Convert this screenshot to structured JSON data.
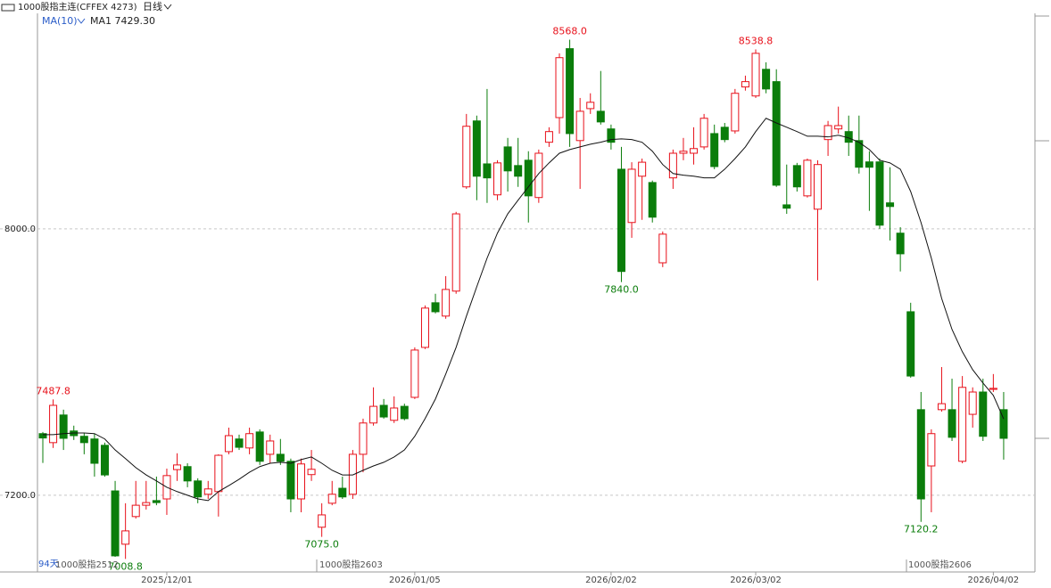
{
  "chart_data": {
    "type": "candlestick",
    "title": "1000股指主连(CFFEX 4273)",
    "period": "日线",
    "ma_name": "MA(10)",
    "ma_label": "MA1 7429.30",
    "day_count_label": "94天",
    "contract_labels": [
      "1000股指2512",
      "1000股指2603",
      "1000股指2606"
    ],
    "categories": [
      null,
      null,
      null,
      null,
      null,
      null,
      null,
      null,
      null,
      null,
      null,
      null,
      "2025/12/01",
      null,
      null,
      null,
      null,
      null,
      null,
      null,
      null,
      null,
      null,
      null,
      null,
      null,
      null,
      null,
      null,
      null,
      null,
      null,
      null,
      null,
      null,
      null,
      "2026/01/05",
      null,
      null,
      null,
      null,
      null,
      null,
      null,
      null,
      null,
      null,
      null,
      null,
      null,
      null,
      null,
      null,
      null,
      null,
      "2026/02/02",
      null,
      null,
      null,
      null,
      null,
      null,
      null,
      null,
      null,
      null,
      null,
      null,
      null,
      "2026/03/02",
      null,
      null,
      null,
      null,
      null,
      null,
      null,
      null,
      null,
      null,
      null,
      null,
      null,
      null,
      null,
      null,
      null,
      null,
      null,
      null,
      null,
      null,
      "2026/04/02",
      null
    ],
    "open": [
      7385,
      7358,
      7441,
      7393,
      7377,
      7369,
      7350,
      7213,
      7053,
      7136,
      7170,
      7184,
      7189,
      7277,
      7286,
      7243,
      7203,
      7211,
      7331,
      7369,
      7342,
      7390,
      7323,
      7323,
      7302,
      7189,
      7262,
      7104,
      7176,
      7221,
      7203,
      7323,
      7417,
      7470,
      7425,
      7467,
      7494,
      7644,
      7778,
      7738,
      7813,
      8126,
      8324,
      8195,
      8102,
      8246,
      8190,
      8206,
      8094,
      8260,
      8334,
      8541,
      8265,
      8361,
      8353,
      8300,
      8179,
      8019,
      8158,
      8139,
      7898,
      8153,
      8227,
      8227,
      8246,
      8286,
      8305,
      8294,
      8426,
      8399,
      8479,
      8442,
      8072,
      8190,
      8099,
      8059,
      8268,
      8300,
      8292,
      8265,
      8201,
      8201,
      8078,
      7987,
      7751,
      7457,
      7288,
      7457,
      7457,
      7302,
      7443,
      7510,
      7518,
      7457
    ],
    "high": [
      7390,
      7487.8,
      7457,
      7409,
      7387,
      7385,
      7358,
      7243,
      7176,
      7243,
      7243,
      7256,
      7280,
      7326,
      7296,
      7251,
      7243,
      7323,
      7403,
      7382,
      7403,
      7398,
      7382,
      7369,
      7310,
      7310,
      7336,
      7176,
      7243,
      7256,
      7336,
      7430,
      7524,
      7489,
      7497,
      7475,
      7644,
      7770,
      7805,
      7858,
      8051,
      8345,
      8340,
      8420,
      8206,
      8273,
      8273,
      8233,
      8238,
      8305,
      8527,
      8568,
      8393,
      8407,
      8474,
      8313,
      8246,
      8200,
      8211,
      8145,
      7992,
      8238,
      8273,
      8305,
      8345,
      8313,
      8318,
      8420,
      8460,
      8538.8,
      8500,
      8479,
      8193,
      8198,
      8211,
      8206,
      8324,
      8367,
      8340,
      8340,
      8233,
      8211,
      8185,
      8005,
      7778,
      7510,
      7398,
      7585,
      7550,
      7558,
      7524,
      7550,
      7564,
      7510
    ],
    "low": [
      7297,
      7342,
      7336,
      7366,
      7323,
      7256,
      7256,
      7015,
      7008.8,
      7130,
      7157,
      7170,
      7141,
      7243,
      7224,
      7176,
      7189,
      7136,
      7323,
      7336,
      7323,
      7291,
      7296,
      7291,
      7149,
      7149,
      7243,
      7075,
      7170,
      7189,
      7189,
      7269,
      7409,
      7430,
      7417,
      7425,
      7489,
      7639,
      7746,
      7730,
      7805,
      8120,
      8086,
      8078,
      8086,
      8112,
      8126,
      8019,
      8078,
      8246,
      8286,
      8246,
      8120,
      8345,
      8313,
      8238,
      7840,
      7973,
      8027,
      8019,
      7885,
      8120,
      8206,
      8193,
      8238,
      8179,
      8260,
      8286,
      8415,
      8393,
      8407,
      8126,
      8045,
      8112,
      8094,
      7845,
      8219,
      8286,
      8219,
      8166,
      8054,
      8000,
      7965,
      7872,
      7553,
      7120.2,
      7149,
      7451,
      7363,
      7296,
      7403,
      7363,
      7510,
      7307
    ],
    "close": [
      7372,
      7470,
      7371,
      7379,
      7358,
      7296,
      7261,
      7018,
      7093,
      7170,
      7178,
      7178,
      7259,
      7291,
      7243,
      7195,
      7219,
      7320,
      7379,
      7344,
      7385,
      7302,
      7363,
      7302,
      7189,
      7294,
      7278,
      7141,
      7203,
      7195,
      7323,
      7417,
      7467,
      7435,
      7462,
      7430,
      7636,
      7762,
      7751,
      7818,
      8045,
      8308,
      8158,
      8153,
      8198,
      8174,
      8158,
      8099,
      8227,
      8292,
      8514,
      8286,
      8353,
      8380,
      8321,
      8260,
      7872,
      8179,
      8200,
      8035,
      7984,
      8227,
      8233,
      8241,
      8332,
      8187,
      8268,
      8407,
      8442,
      8527,
      8420,
      8131,
      8062,
      8126,
      8206,
      8193,
      8310,
      8310,
      8260,
      8185,
      8185,
      8011,
      8067,
      7925,
      7558,
      7189,
      7385,
      7475,
      7374,
      7524,
      7510,
      7377,
      7521,
      7371
    ],
    "ma": [
      7382,
      7382,
      7385,
      7387,
      7387,
      7385,
      7369,
      7336,
      7310,
      7283,
      7261,
      7243,
      7224,
      7211,
      7200,
      7189,
      7184,
      7211,
      7229,
      7248,
      7269,
      7286,
      7296,
      7299,
      7296,
      7307,
      7315,
      7296,
      7275,
      7261,
      7261,
      7275,
      7288,
      7299,
      7315,
      7336,
      7377,
      7430,
      7489,
      7564,
      7644,
      7738,
      7826,
      7912,
      7987,
      8045,
      8086,
      8126,
      8166,
      8198,
      8227,
      8238,
      8246,
      8254,
      8260,
      8268,
      8270,
      8268,
      8260,
      8233,
      8193,
      8166,
      8161,
      8158,
      8153,
      8153,
      8179,
      8211,
      8246,
      8292,
      8332,
      8318,
      8305,
      8292,
      8278,
      8278,
      8276,
      8281,
      8273,
      8260,
      8238,
      8206,
      8198,
      8179,
      8112,
      8019,
      7912,
      7791,
      7698,
      7631,
      7577,
      7537,
      7500,
      7429.3
    ],
    "high_labels": [
      null,
      "7487.8",
      null,
      null,
      null,
      null,
      null,
      null,
      null,
      null,
      null,
      null,
      null,
      null,
      null,
      null,
      null,
      null,
      null,
      null,
      null,
      null,
      null,
      null,
      null,
      null,
      null,
      null,
      null,
      null,
      null,
      null,
      null,
      null,
      null,
      null,
      null,
      null,
      null,
      null,
      null,
      null,
      null,
      null,
      null,
      null,
      null,
      null,
      null,
      null,
      null,
      "8568.0",
      null,
      null,
      null,
      null,
      null,
      null,
      null,
      null,
      null,
      null,
      null,
      null,
      null,
      null,
      null,
      null,
      null,
      "8538.8",
      null,
      null,
      null,
      null,
      null,
      null,
      null,
      null,
      null,
      null,
      null,
      null,
      null,
      null,
      null,
      null,
      null,
      null,
      null,
      null,
      null,
      null,
      null,
      null
    ],
    "low_labels": [
      null,
      null,
      null,
      null,
      null,
      null,
      null,
      null,
      "7008.8",
      null,
      null,
      null,
      null,
      null,
      null,
      null,
      null,
      null,
      null,
      null,
      null,
      null,
      null,
      null,
      null,
      null,
      null,
      "7075.0",
      null,
      null,
      null,
      null,
      null,
      null,
      null,
      null,
      null,
      null,
      null,
      null,
      null,
      null,
      null,
      null,
      null,
      null,
      null,
      null,
      null,
      null,
      null,
      null,
      null,
      null,
      null,
      null,
      "7840.0",
      null,
      null,
      null,
      null,
      null,
      null,
      null,
      null,
      null,
      null,
      null,
      null,
      null,
      null,
      null,
      null,
      null,
      null,
      null,
      null,
      null,
      null,
      null,
      null,
      null,
      null,
      null,
      null,
      "7120.2",
      null,
      null,
      null,
      null,
      null,
      null,
      null,
      null
    ],
    "up_color": "#e8101a",
    "down_color": "#0b7d0b",
    "ma_color": "#111111",
    "ylim": [
      6975,
      8647
    ],
    "yticks": [
      {
        "value": 7200,
        "label": "7200.0"
      },
      {
        "value": 8000,
        "label": "8000.0"
      }
    ],
    "grid": true
  }
}
